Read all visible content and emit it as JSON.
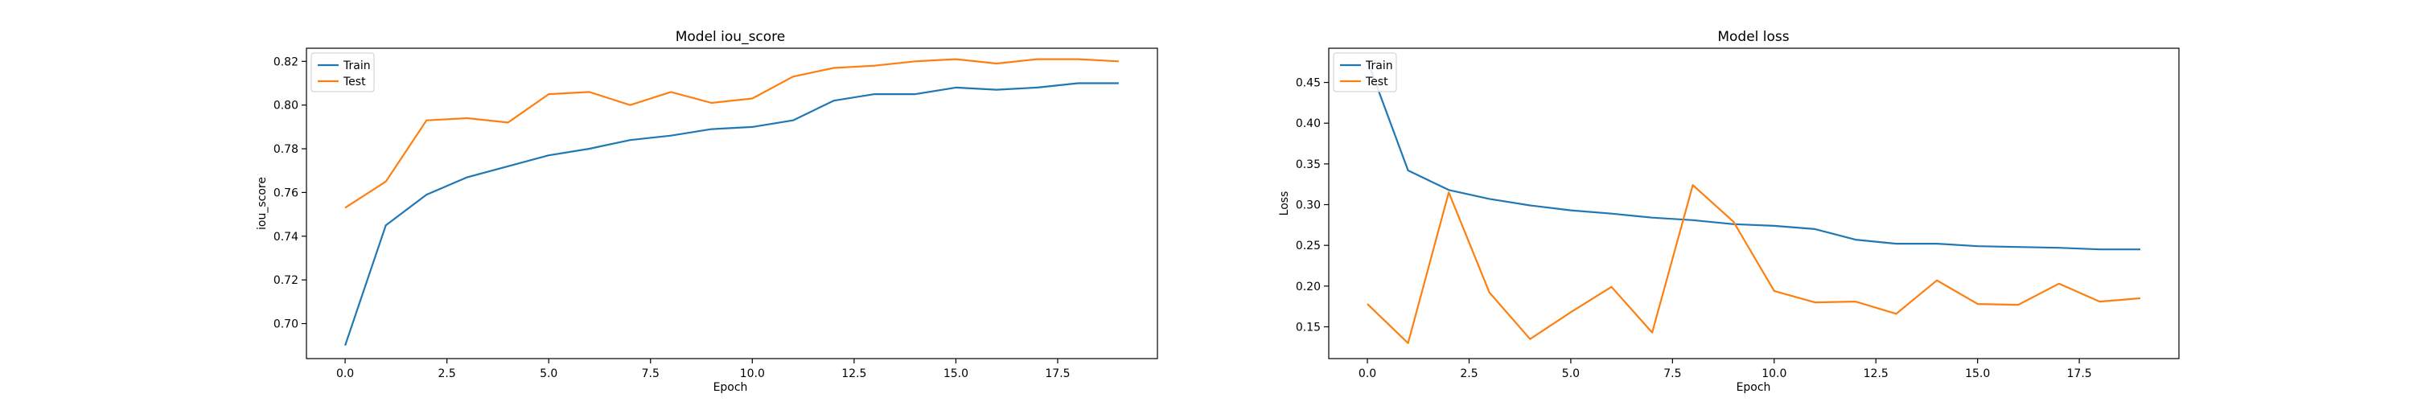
{
  "chart_data": [
    {
      "type": "line",
      "title": "Model iou_score",
      "xlabel": "Epoch",
      "ylabel": "iou_score",
      "xlim": [
        -0.95,
        19.95
      ],
      "ylim": [
        0.684,
        0.826
      ],
      "xticks": [
        0.0,
        2.5,
        5.0,
        7.5,
        10.0,
        12.5,
        15.0,
        17.5
      ],
      "xtick_labels": [
        "0.0",
        "2.5",
        "5.0",
        "7.5",
        "10.0",
        "12.5",
        "15.0",
        "17.5"
      ],
      "yticks": [
        0.7,
        0.72,
        0.74,
        0.76,
        0.78,
        0.8,
        0.82
      ],
      "ytick_labels": [
        "0.70",
        "0.72",
        "0.74",
        "0.76",
        "0.78",
        "0.80",
        "0.82"
      ],
      "legend": "upper-left",
      "grid": false,
      "x": [
        0,
        1,
        2,
        3,
        4,
        5,
        6,
        7,
        8,
        9,
        10,
        11,
        12,
        13,
        14,
        15,
        16,
        17,
        18,
        19
      ],
      "series": [
        {
          "name": "Train",
          "color": "#1f77b4",
          "values": [
            0.69,
            0.745,
            0.759,
            0.767,
            0.772,
            0.777,
            0.78,
            0.784,
            0.786,
            0.789,
            0.79,
            0.793,
            0.802,
            0.805,
            0.805,
            0.808,
            0.807,
            0.808,
            0.81,
            0.81
          ]
        },
        {
          "name": "Test",
          "color": "#ff7f0e",
          "values": [
            0.753,
            0.765,
            0.793,
            0.794,
            0.792,
            0.805,
            0.806,
            0.8,
            0.806,
            0.801,
            0.803,
            0.813,
            0.817,
            0.818,
            0.82,
            0.821,
            0.819,
            0.821,
            0.821,
            0.82
          ]
        }
      ]
    },
    {
      "type": "line",
      "title": "Model loss",
      "xlabel": "Epoch",
      "ylabel": "Loss",
      "xlim": [
        -0.95,
        19.95
      ],
      "ylim": [
        0.111,
        0.492
      ],
      "xticks": [
        0.0,
        2.5,
        5.0,
        7.5,
        10.0,
        12.5,
        15.0,
        17.5
      ],
      "xtick_labels": [
        "0.0",
        "2.5",
        "5.0",
        "7.5",
        "10.0",
        "12.5",
        "15.0",
        "17.5"
      ],
      "yticks": [
        0.15,
        0.2,
        0.25,
        0.3,
        0.35,
        0.4,
        0.45
      ],
      "ytick_labels": [
        "0.15",
        "0.20",
        "0.25",
        "0.30",
        "0.35",
        "0.40",
        "0.45"
      ],
      "legend": "upper-left",
      "grid": false,
      "x": [
        0,
        1,
        2,
        3,
        4,
        5,
        6,
        7,
        8,
        9,
        10,
        11,
        12,
        13,
        14,
        15,
        16,
        17,
        18,
        19
      ],
      "series": [
        {
          "name": "Train",
          "color": "#1f77b4",
          "values": [
            0.477,
            0.342,
            0.318,
            0.307,
            0.299,
            0.293,
            0.289,
            0.284,
            0.281,
            0.276,
            0.274,
            0.27,
            0.257,
            0.252,
            0.252,
            0.249,
            0.248,
            0.247,
            0.245,
            0.245
          ]
        },
        {
          "name": "Test",
          "color": "#ff7f0e",
          "values": [
            0.178,
            0.13,
            0.315,
            0.192,
            0.135,
            0.168,
            0.199,
            0.143,
            0.324,
            0.279,
            0.194,
            0.18,
            0.181,
            0.166,
            0.207,
            0.178,
            0.177,
            0.203,
            0.181,
            0.185
          ]
        }
      ]
    }
  ]
}
